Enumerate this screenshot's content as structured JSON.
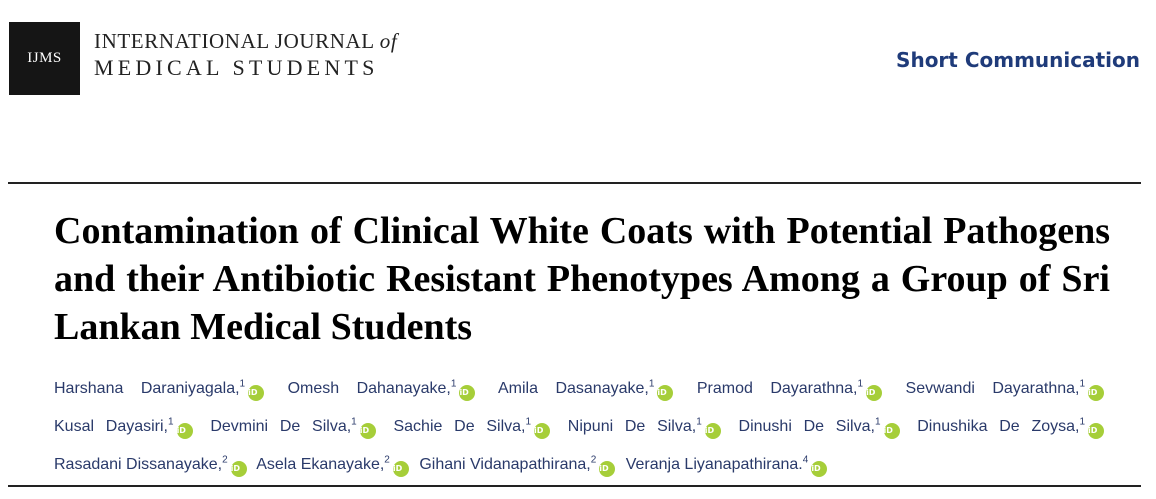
{
  "header": {
    "logo_text": "IJMS",
    "journal_line1_main": "INTERNATIONAL JOURNAL",
    "journal_line1_of": "of",
    "journal_line2": "MEDICAL STUDENTS",
    "article_type": "Short Communication"
  },
  "article": {
    "title": "Contamination of Clinical White Coats with Potential Pathogens and their Antibiotic Resistant Phenotypes Among a Group of Sri Lankan Medical Students"
  },
  "orcid_icon_label": "iD",
  "orcid_color": "#a6ce39",
  "accent_color": "#1f3b7a",
  "authors": [
    {
      "name": "Harshana Daraniyagala,",
      "aff": "1"
    },
    {
      "name": "Omesh Dahanayake,",
      "aff": "1"
    },
    {
      "name": "Amila Dasanayake,",
      "aff": "1"
    },
    {
      "name": "Pramod Dayarathna,",
      "aff": "1"
    },
    {
      "name": "Sevwandi Dayarathna,",
      "aff": "1"
    },
    {
      "name": "Kusal Dayasiri,",
      "aff": "1"
    },
    {
      "name": "Devmini De Silva,",
      "aff": "1"
    },
    {
      "name": "Sachie De Silva,",
      "aff": "1"
    },
    {
      "name": "Nipuni De Silva,",
      "aff": "1"
    },
    {
      "name": "Dinushi De Silva,",
      "aff": "1"
    },
    {
      "name": "Dinushika De Zoysa,",
      "aff": "1"
    },
    {
      "name": "Rasadani Dissanayake,",
      "aff": "2"
    },
    {
      "name": "Asela Ekanayake,",
      "aff": "2"
    },
    {
      "name": "Gihani Vidanapathirana,",
      "aff": "2"
    },
    {
      "name": "Veranja Liyanapathirana.",
      "aff": "4"
    }
  ]
}
